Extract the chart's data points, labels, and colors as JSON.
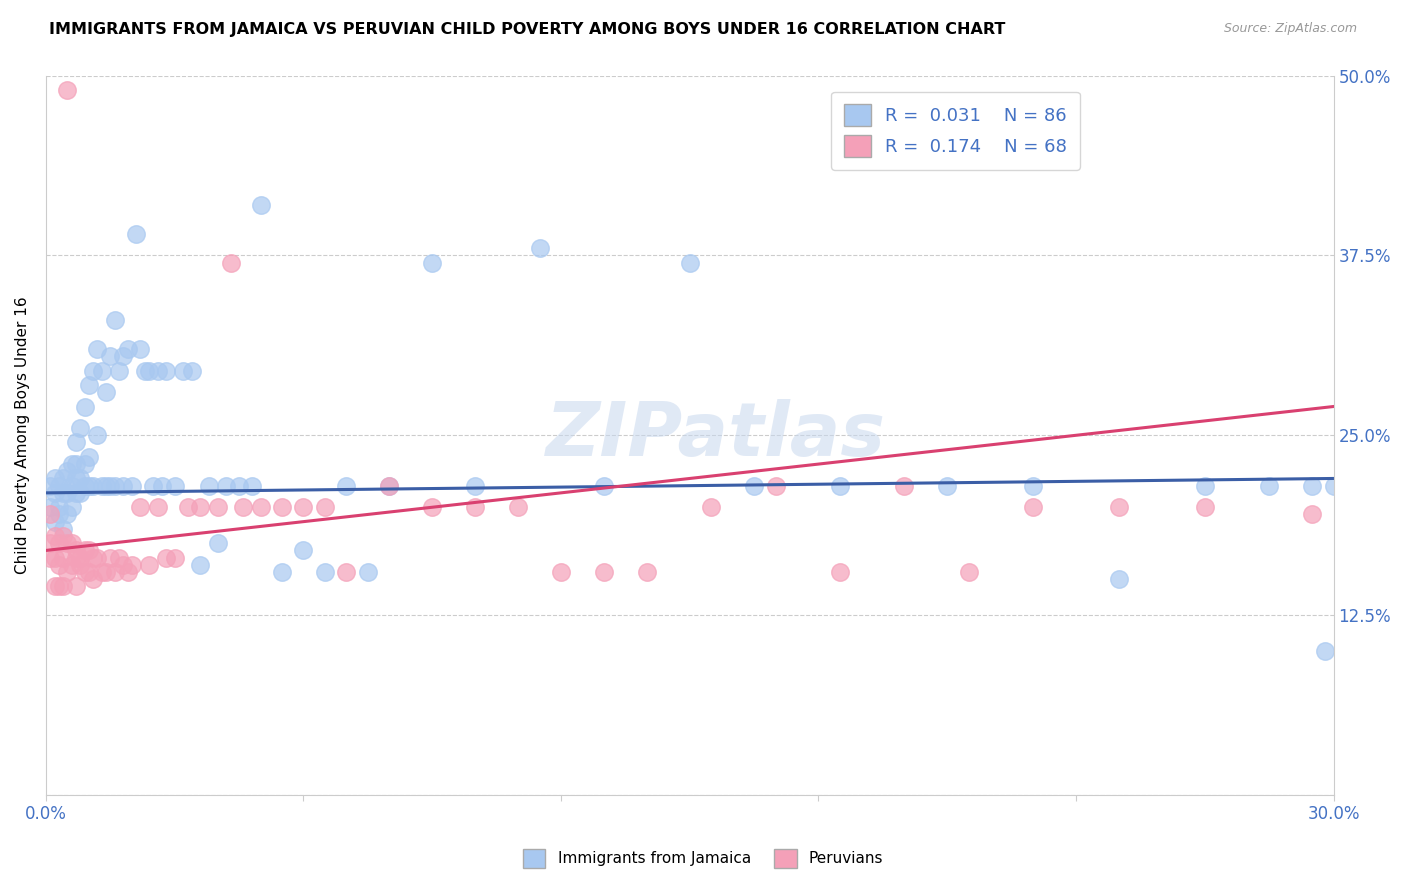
{
  "title": "IMMIGRANTS FROM JAMAICA VS PERUVIAN CHILD POVERTY AMONG BOYS UNDER 16 CORRELATION CHART",
  "source": "Source: ZipAtlas.com",
  "ylabel": "Child Poverty Among Boys Under 16",
  "x_min": 0.0,
  "x_max": 0.3,
  "y_min": 0.0,
  "y_max": 0.5,
  "y_ticks": [
    0.0,
    0.125,
    0.25,
    0.375,
    0.5
  ],
  "y_tick_labels_right": [
    "",
    "12.5%",
    "25.0%",
    "37.5%",
    "50.0%"
  ],
  "blue_color": "#A8C8F0",
  "pink_color": "#F4A0B8",
  "blue_line_color": "#3B5EA6",
  "pink_line_color": "#D94070",
  "R_blue": 0.031,
  "N_blue": 86,
  "R_pink": 0.174,
  "N_pink": 68,
  "legend_label_blue": "Immigrants from Jamaica",
  "legend_label_pink": "Peruvians",
  "watermark": "ZIPatlas",
  "blue_line_start_y": 0.21,
  "blue_line_end_y": 0.22,
  "pink_line_start_y": 0.17,
  "pink_line_end_y": 0.27,
  "blue_scatter_x": [
    0.001,
    0.001,
    0.002,
    0.002,
    0.002,
    0.003,
    0.003,
    0.003,
    0.004,
    0.004,
    0.004,
    0.005,
    0.005,
    0.005,
    0.006,
    0.006,
    0.006,
    0.007,
    0.007,
    0.007,
    0.007,
    0.008,
    0.008,
    0.008,
    0.009,
    0.009,
    0.009,
    0.01,
    0.01,
    0.01,
    0.011,
    0.011,
    0.012,
    0.012,
    0.013,
    0.013,
    0.014,
    0.014,
    0.015,
    0.015,
    0.016,
    0.016,
    0.017,
    0.018,
    0.018,
    0.019,
    0.02,
    0.021,
    0.022,
    0.023,
    0.024,
    0.025,
    0.026,
    0.027,
    0.028,
    0.03,
    0.032,
    0.034,
    0.036,
    0.038,
    0.04,
    0.042,
    0.045,
    0.048,
    0.05,
    0.055,
    0.06,
    0.065,
    0.07,
    0.075,
    0.08,
    0.09,
    0.1,
    0.115,
    0.13,
    0.15,
    0.165,
    0.185,
    0.21,
    0.23,
    0.25,
    0.27,
    0.285,
    0.295,
    0.298,
    0.3
  ],
  "blue_scatter_y": [
    0.215,
    0.2,
    0.22,
    0.19,
    0.21,
    0.215,
    0.2,
    0.195,
    0.21,
    0.22,
    0.185,
    0.225,
    0.21,
    0.195,
    0.215,
    0.23,
    0.2,
    0.22,
    0.21,
    0.23,
    0.245,
    0.21,
    0.22,
    0.255,
    0.215,
    0.23,
    0.27,
    0.215,
    0.235,
    0.285,
    0.215,
    0.295,
    0.25,
    0.31,
    0.215,
    0.295,
    0.215,
    0.28,
    0.215,
    0.305,
    0.215,
    0.33,
    0.295,
    0.215,
    0.305,
    0.31,
    0.215,
    0.39,
    0.31,
    0.295,
    0.295,
    0.215,
    0.295,
    0.215,
    0.295,
    0.215,
    0.295,
    0.295,
    0.16,
    0.215,
    0.175,
    0.215,
    0.215,
    0.215,
    0.41,
    0.155,
    0.17,
    0.155,
    0.215,
    0.155,
    0.215,
    0.37,
    0.215,
    0.38,
    0.215,
    0.37,
    0.215,
    0.215,
    0.215,
    0.215,
    0.15,
    0.215,
    0.215,
    0.215,
    0.1,
    0.215
  ],
  "pink_scatter_x": [
    0.001,
    0.001,
    0.001,
    0.002,
    0.002,
    0.002,
    0.003,
    0.003,
    0.003,
    0.004,
    0.004,
    0.004,
    0.005,
    0.005,
    0.005,
    0.006,
    0.006,
    0.007,
    0.007,
    0.007,
    0.008,
    0.008,
    0.009,
    0.009,
    0.01,
    0.01,
    0.011,
    0.011,
    0.012,
    0.013,
    0.014,
    0.015,
    0.016,
    0.017,
    0.018,
    0.019,
    0.02,
    0.022,
    0.024,
    0.026,
    0.028,
    0.03,
    0.033,
    0.036,
    0.04,
    0.043,
    0.046,
    0.05,
    0.055,
    0.06,
    0.065,
    0.07,
    0.08,
    0.09,
    0.1,
    0.11,
    0.12,
    0.13,
    0.14,
    0.155,
    0.17,
    0.185,
    0.2,
    0.215,
    0.23,
    0.25,
    0.27,
    0.295
  ],
  "pink_scatter_y": [
    0.195,
    0.175,
    0.165,
    0.18,
    0.165,
    0.145,
    0.175,
    0.16,
    0.145,
    0.18,
    0.165,
    0.145,
    0.175,
    0.49,
    0.155,
    0.175,
    0.16,
    0.17,
    0.165,
    0.145,
    0.165,
    0.16,
    0.17,
    0.155,
    0.17,
    0.155,
    0.165,
    0.15,
    0.165,
    0.155,
    0.155,
    0.165,
    0.155,
    0.165,
    0.16,
    0.155,
    0.16,
    0.2,
    0.16,
    0.2,
    0.165,
    0.165,
    0.2,
    0.2,
    0.2,
    0.37,
    0.2,
    0.2,
    0.2,
    0.2,
    0.2,
    0.155,
    0.215,
    0.2,
    0.2,
    0.2,
    0.155,
    0.155,
    0.155,
    0.2,
    0.215,
    0.155,
    0.215,
    0.155,
    0.2,
    0.2,
    0.2,
    0.195
  ]
}
